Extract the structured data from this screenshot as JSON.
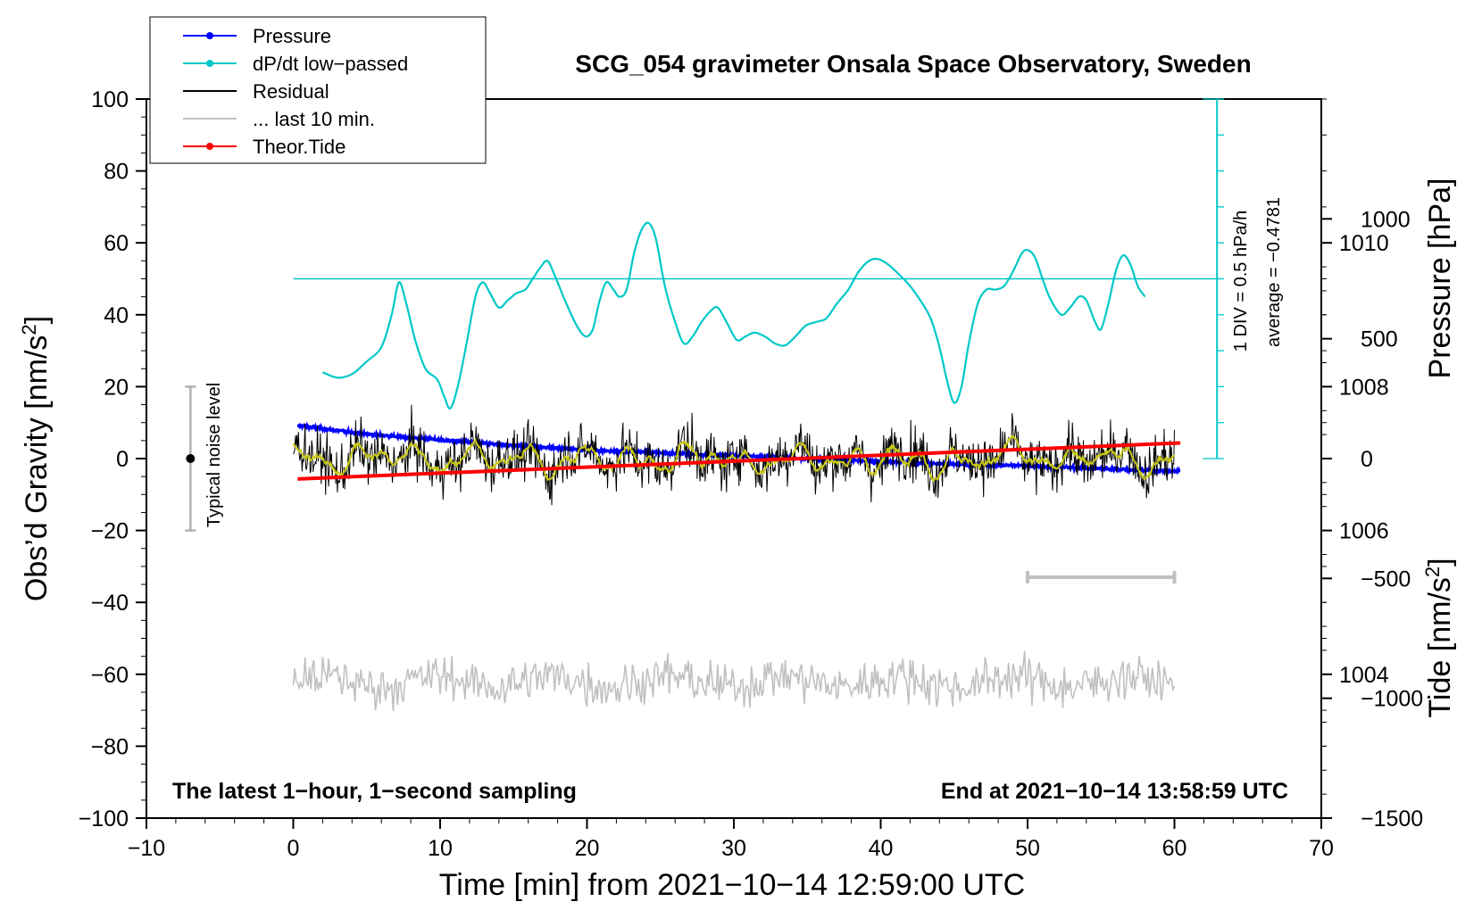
{
  "chart_data": {
    "type": "line",
    "title": "SCG_054 gravimeter Onsala Space Observatory, Sweden",
    "xlabel": "Time [min] from 2021−10−14 12:59:00 UTC",
    "ylabel_left_main": "Obs’d Gravity [nm/s",
    "ylabel_left_sup": "2",
    "ylabel_left_close": "]",
    "ylabel_right_pressure": "Pressure [hPa]",
    "ylabel_right_tide_main": "Tide [nm/s",
    "ylabel_right_tide_sup": "2",
    "ylabel_right_tide_close": "]",
    "xlim": [
      -10,
      70
    ],
    "ylim": [
      -100,
      100
    ],
    "pressure_ylim": [
      1002,
      1012
    ],
    "tide_ylim": [
      -1500,
      1500
    ],
    "x_ticks": [
      {
        "v": -10,
        "label": "−10"
      },
      {
        "v": 0,
        "label": "0"
      },
      {
        "v": 10,
        "label": "10"
      },
      {
        "v": 20,
        "label": "20"
      },
      {
        "v": 30,
        "label": "30"
      },
      {
        "v": 40,
        "label": "40"
      },
      {
        "v": 50,
        "label": "50"
      },
      {
        "v": 60,
        "label": "60"
      },
      {
        "v": 70,
        "label": "70"
      }
    ],
    "y_ticks": [
      {
        "v": 100,
        "label": "100"
      },
      {
        "v": 80,
        "label": "80"
      },
      {
        "v": 60,
        "label": "60"
      },
      {
        "v": 40,
        "label": "40"
      },
      {
        "v": 20,
        "label": "20"
      },
      {
        "v": 0,
        "label": "0"
      },
      {
        "v": -20,
        "label": "−20"
      },
      {
        "v": -40,
        "label": "−40"
      },
      {
        "v": -60,
        "label": "−60"
      },
      {
        "v": -80,
        "label": "−80"
      },
      {
        "v": -100,
        "label": "−100"
      }
    ],
    "pressure_ticks": [
      {
        "v": 1010,
        "label": "1010"
      },
      {
        "v": 1008,
        "label": "1008"
      },
      {
        "v": 1006,
        "label": "1006"
      },
      {
        "v": 1004,
        "label": "1004"
      }
    ],
    "tide_ticks": [
      {
        "v": 1000,
        "label": "1000"
      },
      {
        "v": 500,
        "label": "500"
      },
      {
        "v": 0,
        "label": "0"
      },
      {
        "v": -500,
        "label": "−500"
      },
      {
        "v": -1000,
        "label": "−1000"
      },
      {
        "v": -1500,
        "label": "−1500"
      }
    ],
    "legend": {
      "placement": "top-left",
      "entries": [
        {
          "label": "Pressure",
          "color": "#0000ff",
          "style": "line-dot"
        },
        {
          "label": "dP/dt low−passed",
          "color": "#00c8c8",
          "style": "line-dot"
        },
        {
          "label": "Residual",
          "color": "#000000",
          "style": "line"
        },
        {
          "label": "... last 10 min.",
          "color": "#c0c0c0",
          "style": "line"
        },
        {
          "label": "Theor.Tide",
          "color": "#ff0000",
          "style": "line-dot"
        }
      ]
    },
    "annotations": {
      "bottom_left": "The latest 1−hour, 1−second sampling",
      "bottom_right": "End at 2021−10−14 13:58:59 UTC",
      "noise_label": "Typical noise level",
      "noise_range": [
        -20,
        20
      ],
      "noise_x": -7,
      "div_label": "1 DIV = 0.5 hPa/h",
      "average_label": "average = −0.4781",
      "dpdt_scale_x": 62.9,
      "dpdt_scale_range": [
        0,
        100
      ],
      "dpdt_baseline_y": 50,
      "window_bar_x": [
        50,
        60
      ],
      "window_bar_y": -33
    },
    "series": [
      {
        "name": "Pressure",
        "axis": "pressure",
        "color": "#0000ff",
        "points": [
          [
            0.3,
            1007.46
          ],
          [
            5,
            1007.34
          ],
          [
            10,
            1007.26
          ],
          [
            15,
            1007.18
          ],
          [
            20,
            1007.12
          ],
          [
            25,
            1007.08
          ],
          [
            30,
            1007.04
          ],
          [
            35,
            1007.0
          ],
          [
            40,
            1006.96
          ],
          [
            45,
            1006.92
          ],
          [
            50,
            1006.9
          ],
          [
            55,
            1006.86
          ],
          [
            60.4,
            1006.82
          ]
        ]
      },
      {
        "name": "dP/dt low-passed",
        "axis": "left",
        "color": "#00c8c8",
        "points": [
          [
            2,
            24
          ],
          [
            3,
            22.5
          ],
          [
            4,
            23.5
          ],
          [
            5,
            27
          ],
          [
            6,
            31
          ],
          [
            6.7,
            40
          ],
          [
            7.2,
            49
          ],
          [
            7.7,
            43
          ],
          [
            8.3,
            33
          ],
          [
            9,
            25
          ],
          [
            9.8,
            22
          ],
          [
            10.3,
            17
          ],
          [
            10.7,
            14
          ],
          [
            11.2,
            20
          ],
          [
            11.8,
            32
          ],
          [
            12.4,
            45
          ],
          [
            12.9,
            49
          ],
          [
            13.4,
            46
          ],
          [
            14,
            42
          ],
          [
            14.6,
            44
          ],
          [
            15.2,
            46
          ],
          [
            15.8,
            47
          ],
          [
            16.3,
            50
          ],
          [
            16.8,
            53
          ],
          [
            17.3,
            55
          ],
          [
            17.8,
            51
          ],
          [
            18.5,
            44
          ],
          [
            19.3,
            37
          ],
          [
            19.9,
            34
          ],
          [
            20.4,
            36
          ],
          [
            20.8,
            43
          ],
          [
            21.3,
            49
          ],
          [
            21.8,
            47
          ],
          [
            22.2,
            45
          ],
          [
            22.7,
            47
          ],
          [
            23.2,
            57
          ],
          [
            23.7,
            63.5
          ],
          [
            24.2,
            65.5
          ],
          [
            24.7,
            61
          ],
          [
            25.3,
            48
          ],
          [
            26,
            38
          ],
          [
            26.6,
            32
          ],
          [
            27.2,
            34
          ],
          [
            27.8,
            38
          ],
          [
            28.4,
            41
          ],
          [
            28.9,
            42
          ],
          [
            29.5,
            38
          ],
          [
            30.2,
            33
          ],
          [
            30.8,
            34
          ],
          [
            31.4,
            35
          ],
          [
            32.1,
            34
          ],
          [
            32.8,
            32
          ],
          [
            33.5,
            31.5
          ],
          [
            34.2,
            34
          ],
          [
            34.9,
            37
          ],
          [
            35.6,
            38
          ],
          [
            36.3,
            39
          ],
          [
            37,
            43
          ],
          [
            37.8,
            47
          ],
          [
            38.5,
            52
          ],
          [
            39.2,
            55
          ],
          [
            39.8,
            55.5
          ],
          [
            40.5,
            54
          ],
          [
            41.3,
            51
          ],
          [
            42,
            48
          ],
          [
            42.7,
            44
          ],
          [
            43.4,
            39
          ],
          [
            44,
            31
          ],
          [
            44.5,
            22
          ],
          [
            45,
            15.5
          ],
          [
            45.5,
            20
          ],
          [
            46,
            32
          ],
          [
            46.6,
            43
          ],
          [
            47.2,
            47
          ],
          [
            47.8,
            47
          ],
          [
            48.4,
            48
          ],
          [
            49,
            52
          ],
          [
            49.6,
            57
          ],
          [
            50,
            58
          ],
          [
            50.5,
            56
          ],
          [
            51.1,
            49
          ],
          [
            51.6,
            44
          ],
          [
            52.3,
            40
          ],
          [
            52.9,
            42
          ],
          [
            53.5,
            45
          ],
          [
            54,
            44
          ],
          [
            54.6,
            38
          ],
          [
            55,
            36
          ],
          [
            55.5,
            43
          ],
          [
            56,
            52
          ],
          [
            56.5,
            56.5
          ],
          [
            57,
            54
          ],
          [
            57.5,
            48
          ],
          [
            58,
            45
          ]
        ]
      },
      {
        "name": "Residual",
        "axis": "left",
        "color": "#000000",
        "x_range": [
          0,
          60
        ]
      },
      {
        "name": "Residual (smoothed)",
        "axis": "left",
        "color": "#c8c814",
        "x_range": [
          0,
          60
        ]
      },
      {
        "name": "... last 10 min.",
        "axis": "left",
        "color": "#c0c0c0",
        "x_range": [
          0,
          60
        ],
        "level": -62
      },
      {
        "name": "Theor.Tide",
        "axis": "tide",
        "color": "#ff0000",
        "points": [
          [
            0.3,
            -85
          ],
          [
            60.4,
            65
          ]
        ]
      }
    ]
  }
}
